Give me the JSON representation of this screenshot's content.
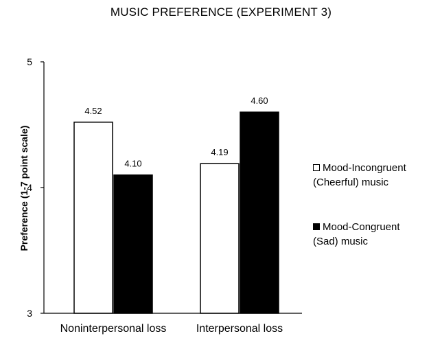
{
  "chart_data": {
    "type": "bar",
    "title": "MUSIC PREFERENCE (EXPERIMENT 3)",
    "xlabel": "",
    "ylabel": "Preference (1-7 point scale)",
    "ylim": [
      3,
      5
    ],
    "yticks": [
      "3",
      "4",
      "5"
    ],
    "categories": [
      "Noninterpersonal loss",
      "Interpersonal loss"
    ],
    "series": [
      {
        "name": "Mood-Incongruent (Cheerful) music",
        "name_lines": [
          "Mood-Incongruent",
          "(Cheerful) music"
        ],
        "color": "#ffffff",
        "values": [
          4.52,
          4.19
        ],
        "labels": [
          "4.52",
          "4.19"
        ]
      },
      {
        "name": "Mood-Congruent (Sad) music",
        "name_lines": [
          "Mood-Congruent",
          "(Sad) music"
        ],
        "color": "#000000",
        "values": [
          4.1,
          4.6
        ],
        "labels": [
          "4.10",
          "4.60"
        ]
      }
    ],
    "grid": false,
    "legend_position": "right"
  }
}
